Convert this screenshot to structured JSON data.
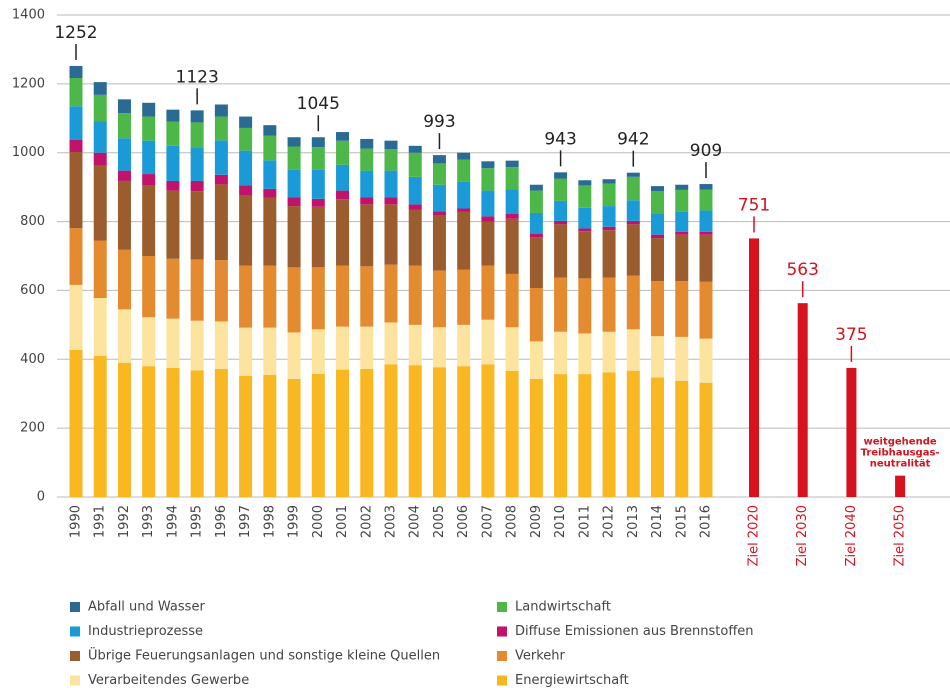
{
  "chart_data": {
    "type": "stacked-bar",
    "categories": [
      "1990",
      "1991",
      "1992",
      "1993",
      "1994",
      "1995",
      "1996",
      "1997",
      "1998",
      "1999",
      "2000",
      "2001",
      "2002",
      "2003",
      "2004",
      "2005",
      "2006",
      "2007",
      "2008",
      "2009",
      "2010",
      "2011",
      "2012",
      "2013",
      "2014",
      "2015",
      "2016"
    ],
    "series": [
      {
        "name": "Energiewirtschaft",
        "color": "#f9b721",
        "values": [
          427,
          410,
          390,
          380,
          375,
          368,
          372,
          352,
          355,
          343,
          358,
          370,
          372,
          385,
          383,
          377,
          380,
          385,
          366,
          343,
          357,
          357,
          362,
          367,
          347,
          337,
          332
        ]
      },
      {
        "name": "Verarbeitendes Gewerbe",
        "color": "#fde49e",
        "values": [
          189,
          168,
          155,
          142,
          143,
          144,
          138,
          140,
          137,
          135,
          129,
          125,
          123,
          122,
          117,
          116,
          120,
          130,
          127,
          109,
          123,
          118,
          118,
          120,
          120,
          128,
          128
        ]
      },
      {
        "name": "Verkehr",
        "color": "#e48a2f",
        "values": [
          165,
          167,
          173,
          178,
          174,
          178,
          178,
          180,
          180,
          189,
          181,
          177,
          175,
          168,
          172,
          165,
          160,
          157,
          155,
          155,
          157,
          160,
          157,
          156,
          160,
          162,
          165
        ]
      },
      {
        "name": "Übrige Feuerungsanlagen und sonstige kleine Quellen",
        "color": "#9b5d2e",
        "values": [
          221,
          217,
          200,
          205,
          198,
          198,
          220,
          203,
          198,
          178,
          175,
          193,
          180,
          175,
          163,
          159,
          168,
          128,
          160,
          148,
          155,
          137,
          138,
          149,
          125,
          135,
          137
        ]
      },
      {
        "name": "Diffuse Emissionen aus Brennstoffen",
        "color": "#c1136c",
        "values": [
          35,
          38,
          30,
          33,
          28,
          30,
          28,
          30,
          25,
          25,
          23,
          25,
          20,
          20,
          15,
          13,
          10,
          15,
          14,
          10,
          10,
          8,
          10,
          10,
          10,
          8,
          8
        ]
      },
      {
        "name": "Industrieprozesse",
        "color": "#1a9bd7",
        "values": [
          98,
          92,
          94,
          97,
          102,
          98,
          100,
          101,
          83,
          80,
          84,
          75,
          78,
          78,
          80,
          77,
          78,
          75,
          71,
          60,
          58,
          60,
          60,
          60,
          60,
          58,
          62
        ]
      },
      {
        "name": "Landwirtschaft",
        "color": "#4db849",
        "values": [
          82,
          76,
          73,
          70,
          70,
          72,
          69,
          66,
          72,
          68,
          66,
          70,
          64,
          62,
          70,
          62,
          64,
          65,
          65,
          65,
          65,
          65,
          65,
          68,
          66,
          64,
          61
        ]
      },
      {
        "name": "Abfall und Wasser",
        "color": "#296b93",
        "values": [
          35,
          37,
          40,
          40,
          35,
          35,
          35,
          33,
          30,
          27,
          29,
          25,
          28,
          25,
          20,
          24,
          20,
          20,
          19,
          17,
          18,
          15,
          13,
          12,
          15,
          15,
          16
        ]
      }
    ],
    "totals": [
      {
        "category": "1990",
        "value": 1252
      },
      {
        "category": "1995",
        "value": 1123
      },
      {
        "category": "2000",
        "value": 1045
      },
      {
        "category": "2005",
        "value": 993
      },
      {
        "category": "2010",
        "value": 943
      },
      {
        "category": "2013",
        "value": 942
      },
      {
        "category": "2016",
        "value": 909
      }
    ],
    "targets": {
      "categories": [
        "Ziel 2020",
        "Ziel 2030",
        "Ziel 2040",
        "Ziel 2050"
      ],
      "values": [
        751,
        563,
        375,
        62
      ],
      "color": "#d5121e"
    },
    "annotation": {
      "category": "Ziel 2050",
      "lines": [
        "weitgehende",
        "Treibhausgas-",
        "neutralität"
      ]
    },
    "ylim": [
      0,
      1400
    ],
    "yticks": [
      0,
      200,
      400,
      600,
      800,
      1000,
      1200,
      1400
    ],
    "grid": true
  }
}
